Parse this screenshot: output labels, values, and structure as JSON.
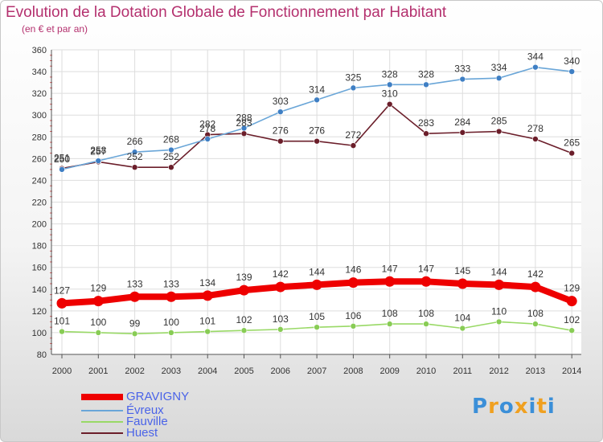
{
  "chart_data": {
    "type": "line",
    "title": "Evolution de la Dotation Globale de Fonctionnement par Habitant",
    "subtitle": "(en € et par an)",
    "xlabel": "",
    "ylabel": "",
    "ylim": [
      80,
      360
    ],
    "ytick_step": 20,
    "yticks": [
      "80",
      "100",
      "120",
      "140",
      "160",
      "180",
      "200",
      "220",
      "240",
      "260",
      "280",
      "300",
      "320",
      "340",
      "360"
    ],
    "categories": [
      "2000",
      "2001",
      "2002",
      "2003",
      "2004",
      "2005",
      "2006",
      "2007",
      "2008",
      "2009",
      "2010",
      "2011",
      "2012",
      "2013",
      "2014"
    ],
    "series": [
      {
        "name": "GRAVIGNY",
        "color": "#ee0000",
        "values": [
          127,
          129,
          133,
          133,
          134,
          139,
          142,
          144,
          146,
          147,
          147,
          145,
          144,
          142,
          129
        ]
      },
      {
        "name": "Évreux",
        "color": "#6aa6d8",
        "values": [
          250,
          258,
          266,
          268,
          278,
          288,
          303,
          314,
          325,
          328,
          328,
          333,
          334,
          344,
          340
        ]
      },
      {
        "name": "Fauville",
        "color": "#99d966",
        "values": [
          101,
          100,
          99,
          100,
          101,
          102,
          103,
          105,
          106,
          108,
          108,
          104,
          110,
          108,
          102
        ]
      },
      {
        "name": "Huest",
        "color": "#6b1e2a",
        "values": [
          251,
          257,
          252,
          252,
          282,
          283,
          276,
          276,
          272,
          310,
          283,
          284,
          285,
          278,
          265
        ]
      }
    ]
  },
  "logo": {
    "text": "Proxiti",
    "letters": [
      "P",
      "r",
      "o",
      "x",
      "i",
      "t",
      "i"
    ],
    "colors": [
      "#3b8fd8",
      "#f0a020",
      "#3b8fd8",
      "#f0a020",
      "#3b8fd8",
      "#f0a020",
      "#3b8fd8"
    ]
  }
}
